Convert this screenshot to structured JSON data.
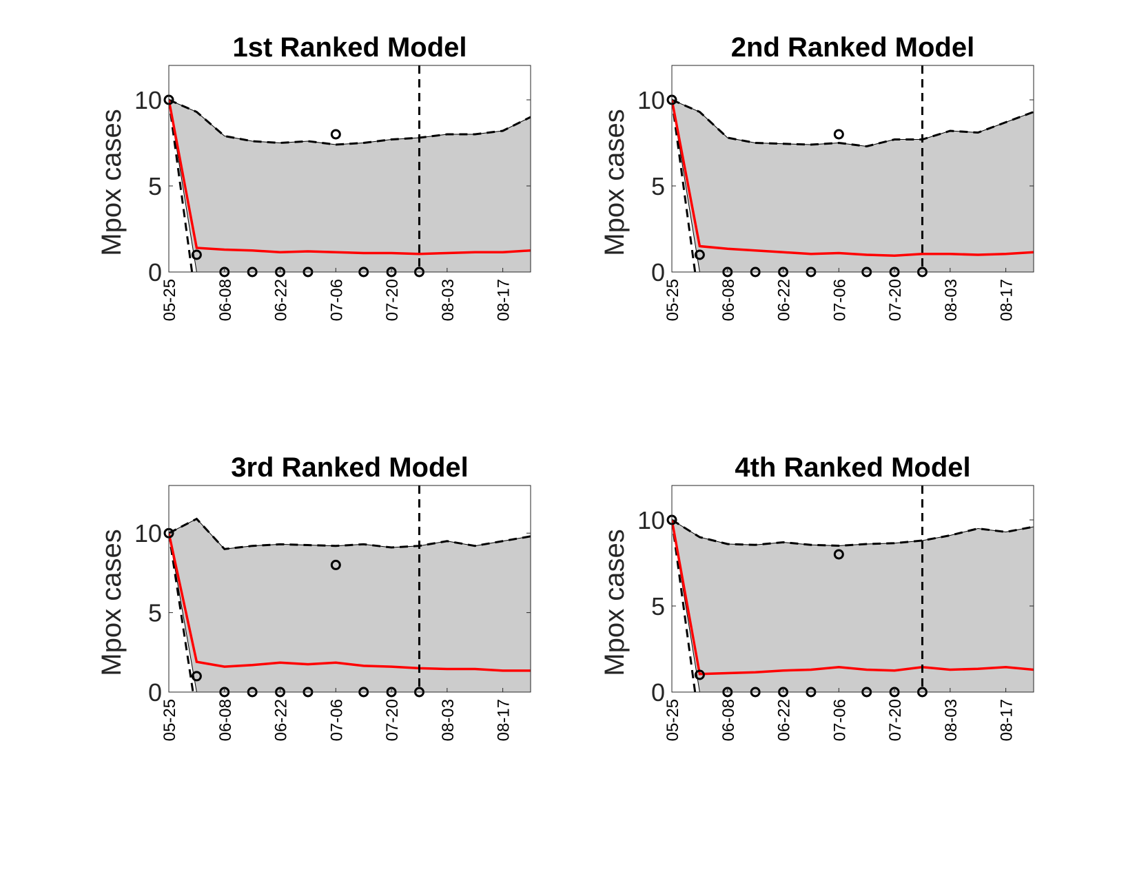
{
  "figure": {
    "background": "#ffffff"
  },
  "colors": {
    "band_fill": "#cccccc",
    "median": "#ff0000",
    "bounds": "#000000",
    "observed": "#000000",
    "forecast_line": "#000000"
  },
  "chart_data": [
    {
      "type": "area",
      "title": "1st Ranked Model",
      "ylabel": "Mpox cases",
      "xlabel": "",
      "yticks": [
        0,
        5,
        10
      ],
      "ylim": [
        0,
        12
      ],
      "x_tick_labels": [
        "05-25",
        "06-08",
        "06-22",
        "07-06",
        "07-20",
        "08-03",
        "08-17"
      ],
      "x_dates": [
        "05-25",
        "06-01",
        "06-08",
        "06-15",
        "06-22",
        "06-29",
        "07-06",
        "07-13",
        "07-20",
        "07-27",
        "08-03",
        "08-10",
        "08-17",
        "08-24"
      ],
      "forecast_start": "07-27",
      "series": [
        {
          "role": "upper",
          "values": [
            10,
            9.3,
            7.9,
            7.6,
            7.5,
            7.6,
            7.4,
            7.5,
            7.7,
            7.8,
            8.0,
            8.0,
            8.2,
            9.0
          ]
        },
        {
          "role": "lower",
          "values": [
            10,
            -2,
            -2,
            -2,
            -2,
            -2,
            -2,
            -2,
            -2,
            -2,
            -2,
            -2,
            -2,
            -2
          ]
        },
        {
          "role": "median",
          "values": [
            10,
            1.4,
            1.3,
            1.25,
            1.15,
            1.2,
            1.15,
            1.1,
            1.1,
            1.05,
            1.1,
            1.15,
            1.15,
            1.25
          ]
        },
        {
          "role": "observed",
          "values": [
            10,
            1,
            0,
            0,
            0,
            0,
            8,
            0,
            0,
            0
          ]
        }
      ],
      "grid": false
    },
    {
      "type": "area",
      "title": "2nd Ranked Model",
      "ylabel": "Mpox cases",
      "xlabel": "",
      "yticks": [
        0,
        5,
        10
      ],
      "ylim": [
        0,
        12
      ],
      "x_tick_labels": [
        "05-25",
        "06-08",
        "06-22",
        "07-06",
        "07-20",
        "08-03",
        "08-17"
      ],
      "x_dates": [
        "05-25",
        "06-01",
        "06-08",
        "06-15",
        "06-22",
        "06-29",
        "07-06",
        "07-13",
        "07-20",
        "07-27",
        "08-03",
        "08-10",
        "08-17",
        "08-24"
      ],
      "forecast_start": "07-27",
      "series": [
        {
          "role": "upper",
          "values": [
            10,
            9.3,
            7.8,
            7.5,
            7.45,
            7.4,
            7.5,
            7.3,
            7.7,
            7.7,
            8.2,
            8.1,
            8.7,
            9.3
          ]
        },
        {
          "role": "lower",
          "values": [
            10,
            -2,
            -2,
            -2,
            -2,
            -2,
            -2,
            -2,
            -2,
            -2,
            -2,
            -2,
            -2,
            -2
          ]
        },
        {
          "role": "median",
          "values": [
            10,
            1.5,
            1.35,
            1.25,
            1.15,
            1.05,
            1.1,
            1.0,
            0.95,
            1.05,
            1.05,
            1.0,
            1.05,
            1.15
          ]
        },
        {
          "role": "observed",
          "values": [
            10,
            1,
            0,
            0,
            0,
            0,
            8,
            0,
            0,
            0
          ]
        }
      ],
      "grid": false
    },
    {
      "type": "area",
      "title": "3rd Ranked Model",
      "ylabel": "Mpox cases",
      "xlabel": "",
      "yticks": [
        0,
        5,
        10
      ],
      "ylim": [
        0,
        13
      ],
      "x_tick_labels": [
        "05-25",
        "06-08",
        "06-22",
        "07-06",
        "07-20",
        "08-03",
        "08-17"
      ],
      "x_dates": [
        "05-25",
        "06-01",
        "06-08",
        "06-15",
        "06-22",
        "06-29",
        "07-06",
        "07-13",
        "07-20",
        "07-27",
        "08-03",
        "08-10",
        "08-17",
        "08-24"
      ],
      "forecast_start": "07-27",
      "series": [
        {
          "role": "upper",
          "values": [
            10,
            10.9,
            9.0,
            9.2,
            9.3,
            9.25,
            9.2,
            9.3,
            9.1,
            9.2,
            9.5,
            9.2,
            9.5,
            9.8
          ]
        },
        {
          "role": "lower",
          "values": [
            10,
            -1.5,
            -2,
            -2,
            -2,
            -2,
            -2,
            -2,
            -2,
            -2,
            -2,
            -2,
            -2,
            -2
          ]
        },
        {
          "role": "median",
          "values": [
            10,
            1.9,
            1.6,
            1.7,
            1.85,
            1.75,
            1.85,
            1.65,
            1.6,
            1.5,
            1.45,
            1.45,
            1.35,
            1.35
          ]
        },
        {
          "role": "observed",
          "values": [
            10,
            1,
            0,
            0,
            0,
            0,
            8,
            0,
            0,
            0
          ]
        }
      ],
      "grid": false
    },
    {
      "type": "area",
      "title": "4th Ranked Model",
      "ylabel": "Mpox cases",
      "xlabel": "",
      "yticks": [
        0,
        5,
        10
      ],
      "ylim": [
        0,
        12
      ],
      "x_tick_labels": [
        "05-25",
        "06-08",
        "06-22",
        "07-06",
        "07-20",
        "08-03",
        "08-17"
      ],
      "x_dates": [
        "05-25",
        "06-01",
        "06-08",
        "06-15",
        "06-22",
        "06-29",
        "07-06",
        "07-13",
        "07-20",
        "07-27",
        "08-03",
        "08-10",
        "08-17",
        "08-24"
      ],
      "forecast_start": "07-27",
      "series": [
        {
          "role": "upper",
          "values": [
            10,
            9.0,
            8.6,
            8.55,
            8.7,
            8.55,
            8.5,
            8.6,
            8.65,
            8.8,
            9.1,
            9.5,
            9.3,
            9.6
          ]
        },
        {
          "role": "lower",
          "values": [
            10,
            -2,
            -2,
            -2,
            -2,
            -2,
            -2,
            -2,
            -2,
            -2,
            -2,
            -2,
            -2,
            -2
          ]
        },
        {
          "role": "median",
          "values": [
            10,
            1.05,
            1.1,
            1.15,
            1.25,
            1.3,
            1.45,
            1.3,
            1.25,
            1.45,
            1.3,
            1.35,
            1.45,
            1.3
          ]
        },
        {
          "role": "observed",
          "values": [
            10,
            1,
            0,
            0,
            0,
            0,
            8,
            0,
            0,
            0
          ]
        }
      ],
      "grid": false
    }
  ]
}
